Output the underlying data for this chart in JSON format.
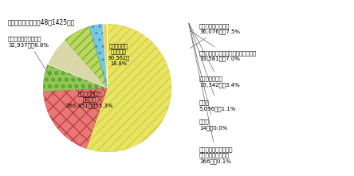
{
  "title": "（企業の研究者数：48万1425人）",
  "slices": [
    {
      "label_inside": "その他の製造業\n（合計）\n266,451人　55.3%",
      "value": 266451,
      "pct": 55.3,
      "color": "#e8e464",
      "hatch": "///",
      "hatch_color": "#d4cc40"
    },
    {
      "label_inside": "情報通信機械\n器具製造業\n90,562人\n18.8%",
      "value": 90562,
      "pct": 18.8,
      "color": "#e87878",
      "hatch": "xx",
      "hatch_color": "#c04040"
    },
    {
      "label_inside": "",
      "value": 32937,
      "pct": 6.8,
      "color": "#90c858",
      "hatch": "oo",
      "hatch_color": "#60a030"
    },
    {
      "label_inside": "",
      "value": 36076,
      "pct": 7.5,
      "color": "#d8d8a8",
      "hatch": "",
      "hatch_color": "white"
    },
    {
      "label_inside": "",
      "value": 33581,
      "pct": 7.0,
      "color": "#b8d860",
      "hatch": "///",
      "hatch_color": "#80a830"
    },
    {
      "label_inside": "",
      "value": 16342,
      "pct": 3.4,
      "color": "#78c8e0",
      "hatch": "..",
      "hatch_color": "#3090b8"
    },
    {
      "label_inside": "",
      "value": 5096,
      "pct": 1.1,
      "color": "#f0d060",
      "hatch": "",
      "hatch_color": "white"
    },
    {
      "label_inside": "",
      "value": 14,
      "pct": 0.0,
      "color": "#88c888",
      "hatch": "",
      "hatch_color": "white"
    },
    {
      "label_inside": "",
      "value": 366,
      "pct": 0.1,
      "color": "#b8b8d0",
      "hatch": "",
      "hatch_color": "white"
    }
  ],
  "left_labels": [
    {
      "text": "その他の産業（合計）\n32,937人　6.8%",
      "wedge_idx": 2
    }
  ],
  "right_labels": [
    {
      "text": "電気機械器具製造業\n36,076人　7.5%",
      "wedge_idx": 3
    },
    {
      "text": "電子部品・デバイス・電子回路製造業\n33,581人　7.0%",
      "wedge_idx": 4
    },
    {
      "text": "情報サービス業\n16,342人　3.4%",
      "wedge_idx": 5
    },
    {
      "text": "通信業\n5,096人　1.1%",
      "wedge_idx": 6
    },
    {
      "text": "放送業\n14人　0.0%",
      "wedge_idx": 7
    },
    {
      "text": "インターネット附随・\nその他の情報通信業\n366人　0.1%",
      "wedge_idx": 8
    }
  ]
}
